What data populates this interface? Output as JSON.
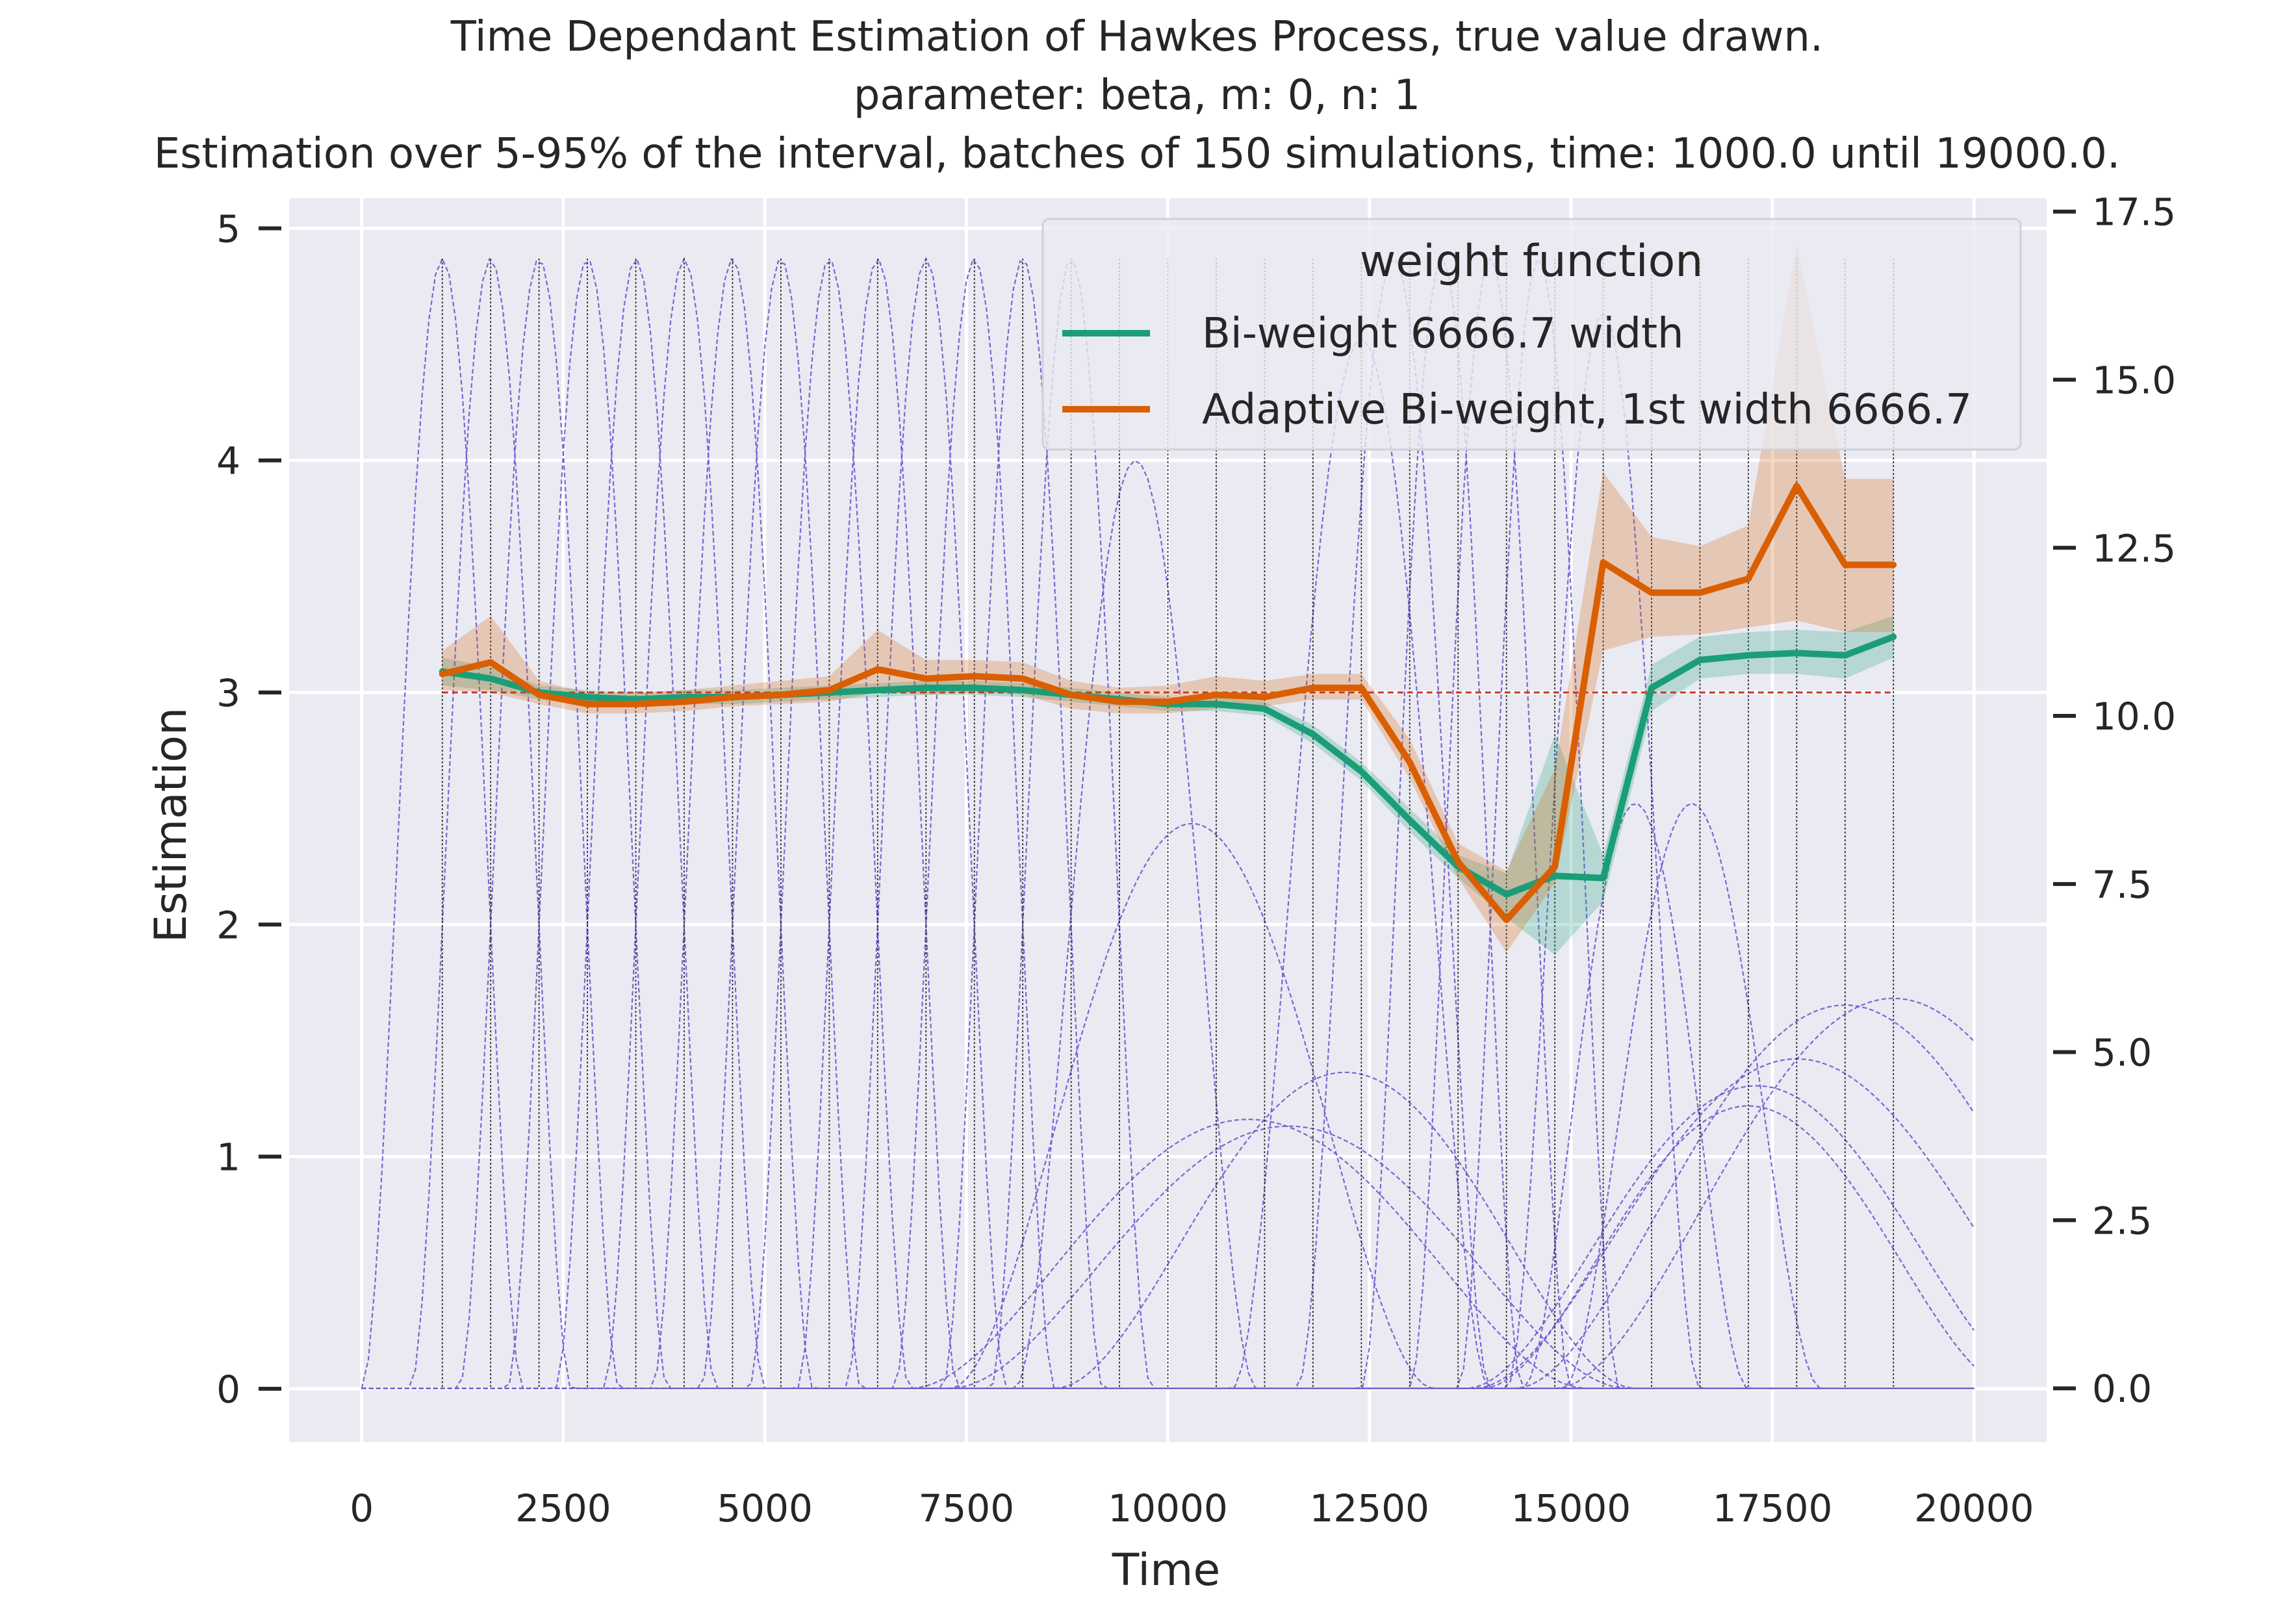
{
  "chart_data": {
    "type": "line",
    "title_lines": [
      "Time Dependant Estimation of Hawkes Process, true value drawn.",
      "parameter: beta, m: 0, n: 1",
      "Estimation over 5-95% of the interval, batches of 150 simulations, time: 1000.0 until 19000.0."
    ],
    "xlabel": "Time",
    "ylabel": "Estimation",
    "xlim": [
      -900,
      20900
    ],
    "ylim": [
      -0.23,
      5.13
    ],
    "xticks": [
      0,
      2500,
      5000,
      7500,
      10000,
      12500,
      15000,
      17500,
      20000
    ],
    "xtick_labels": [
      "0",
      "2500",
      "5000",
      "7500",
      "10000",
      "12500",
      "15000",
      "17500",
      "20000"
    ],
    "yticks": [
      0,
      1,
      2,
      3,
      4,
      5
    ],
    "ytick_labels": [
      "0",
      "1",
      "2",
      "3",
      "4",
      "5"
    ],
    "y2lim": [
      -0.8,
      17.7
    ],
    "y2ticks": [
      0,
      2.5,
      5,
      7.5,
      10,
      12.5,
      15,
      17.5
    ],
    "y2tick_labels": [
      "0.0",
      "2.5",
      "5.0",
      "7.5",
      "10.0",
      "12.5",
      "15.0",
      "17.5"
    ],
    "grid": true,
    "legend": {
      "title": "weight function",
      "position": "top-right",
      "entries": [
        {
          "label": "Bi-weight 6666.7 width",
          "color": "#1b9e77"
        },
        {
          "label": "Adaptive Bi-weight, 1st width 6666.7",
          "color": "#d95f02"
        }
      ]
    },
    "x": [
      1000,
      1600,
      2200,
      2800,
      3400,
      4000,
      4600,
      5200,
      5800,
      6400,
      7000,
      7600,
      8200,
      8800,
      9400,
      10000,
      10600,
      11200,
      11800,
      12400,
      13000,
      13600,
      14200,
      14800,
      15400,
      16000,
      16600,
      17200,
      17800,
      18400,
      19000
    ],
    "series": [
      {
        "name": "Bi-weight 6666.7 width",
        "color": "#1b9e77",
        "values": [
          3.09,
          3.06,
          3.0,
          2.98,
          2.97,
          2.98,
          2.98,
          2.99,
          3.0,
          3.01,
          3.02,
          3.02,
          3.01,
          2.99,
          2.97,
          2.95,
          2.95,
          2.93,
          2.82,
          2.66,
          2.45,
          2.25,
          2.13,
          2.21,
          2.2,
          3.02,
          3.14,
          3.16,
          3.17,
          3.16,
          3.24
        ],
        "lower": [
          3.03,
          3.01,
          2.97,
          2.95,
          2.94,
          2.95,
          2.95,
          2.96,
          2.97,
          2.98,
          2.99,
          2.99,
          2.98,
          2.96,
          2.94,
          2.92,
          2.92,
          2.9,
          2.78,
          2.62,
          2.4,
          2.2,
          2.03,
          1.87,
          2.1,
          2.92,
          3.06,
          3.08,
          3.08,
          3.06,
          3.15
        ],
        "upper": [
          3.15,
          3.11,
          3.03,
          3.01,
          3.0,
          3.01,
          3.01,
          3.02,
          3.03,
          3.04,
          3.05,
          3.05,
          3.04,
          3.02,
          3.0,
          2.98,
          2.98,
          2.96,
          2.86,
          2.7,
          2.5,
          2.3,
          2.22,
          2.82,
          2.3,
          3.12,
          3.24,
          3.26,
          3.27,
          3.26,
          3.33
        ]
      },
      {
        "name": "Adaptive Bi-weight, 1st width 6666.7",
        "color": "#d95f02",
        "values": [
          3.08,
          3.13,
          2.99,
          2.95,
          2.95,
          2.96,
          2.98,
          2.99,
          3.01,
          3.1,
          3.06,
          3.07,
          3.06,
          2.99,
          2.96,
          2.96,
          2.99,
          2.98,
          3.02,
          3.02,
          2.7,
          2.27,
          2.02,
          2.25,
          3.56,
          3.43,
          3.43,
          3.49,
          3.89,
          3.55,
          3.55
        ],
        "lower": [
          3.01,
          3.0,
          2.95,
          2.91,
          2.91,
          2.92,
          2.94,
          2.95,
          2.96,
          3.0,
          2.99,
          3.0,
          2.99,
          2.93,
          2.91,
          2.91,
          2.93,
          2.94,
          2.97,
          2.97,
          2.63,
          2.2,
          1.88,
          2.18,
          3.18,
          3.24,
          3.25,
          3.28,
          3.31,
          3.26,
          3.26
        ],
        "upper": [
          3.18,
          3.33,
          3.05,
          3.0,
          3.0,
          3.01,
          3.03,
          3.05,
          3.07,
          3.27,
          3.14,
          3.14,
          3.13,
          3.05,
          3.02,
          3.03,
          3.07,
          3.05,
          3.08,
          3.08,
          2.8,
          2.35,
          2.23,
          2.67,
          3.95,
          3.67,
          3.63,
          3.72,
          4.93,
          3.92,
          3.92
        ]
      }
    ],
    "true_value": {
      "y": 3.0,
      "x_start": 1000,
      "x_end": 19000,
      "color": "#c0392b"
    },
    "batch_markers": [
      1000,
      1600,
      2200,
      2800,
      3400,
      4000,
      4600,
      5200,
      5800,
      6400,
      7000,
      7600,
      8200,
      8800,
      9400,
      10000,
      10600,
      11200,
      11800,
      12400,
      13000,
      13600,
      14200,
      14800,
      15400,
      16000,
      16600,
      17200,
      17800,
      18400,
      19000
    ],
    "kernel_color": "#6a5acd",
    "kernels": [
      {
        "center": 1000,
        "half_width": 1000,
        "height": 16.8
      },
      {
        "center": 1600,
        "half_width": 1000,
        "height": 16.8
      },
      {
        "center": 2200,
        "half_width": 1000,
        "height": 16.8
      },
      {
        "center": 2800,
        "half_width": 1000,
        "height": 16.8
      },
      {
        "center": 3400,
        "half_width": 1000,
        "height": 16.8
      },
      {
        "center": 4000,
        "half_width": 1000,
        "height": 16.8
      },
      {
        "center": 4600,
        "half_width": 1000,
        "height": 16.8
      },
      {
        "center": 5200,
        "half_width": 1000,
        "height": 16.8
      },
      {
        "center": 5800,
        "half_width": 1000,
        "height": 16.8
      },
      {
        "center": 6400,
        "half_width": 1000,
        "height": 16.8
      },
      {
        "center": 7000,
        "half_width": 1000,
        "height": 16.8
      },
      {
        "center": 7600,
        "half_width": 1000,
        "height": 16.8
      },
      {
        "center": 8200,
        "half_width": 1000,
        "height": 16.8
      },
      {
        "center": 8800,
        "half_width": 1000,
        "height": 16.8
      },
      {
        "center": 9600,
        "half_width": 1500,
        "height": 13.8
      },
      {
        "center": 10300,
        "half_width": 3000,
        "height": 8.4
      },
      {
        "center": 11000,
        "half_width": 4200,
        "height": 4.0
      },
      {
        "center": 11500,
        "half_width": 4200,
        "height": 3.9
      },
      {
        "center": 12200,
        "half_width": 3600,
        "height": 4.7
      },
      {
        "center": 12400,
        "half_width": 1600,
        "height": 15.6
      },
      {
        "center": 12800,
        "half_width": 1200,
        "height": 16.8
      },
      {
        "center": 13400,
        "half_width": 1000,
        "height": 16.8
      },
      {
        "center": 14000,
        "half_width": 1000,
        "height": 16.8
      },
      {
        "center": 14600,
        "half_width": 1000,
        "height": 16.8
      },
      {
        "center": 15400,
        "half_width": 1200,
        "height": 16.0
      },
      {
        "center": 15800,
        "half_width": 1400,
        "height": 8.7
      },
      {
        "center": 16500,
        "half_width": 1600,
        "height": 8.7
      },
      {
        "center": 17200,
        "half_width": 3300,
        "height": 4.2
      },
      {
        "center": 17300,
        "half_width": 3600,
        "height": 4.5
      },
      {
        "center": 17800,
        "half_width": 4000,
        "height": 4.9
      },
      {
        "center": 18400,
        "half_width": 4100,
        "height": 5.7
      },
      {
        "center": 19000,
        "half_width": 4200,
        "height": 5.8
      }
    ]
  }
}
